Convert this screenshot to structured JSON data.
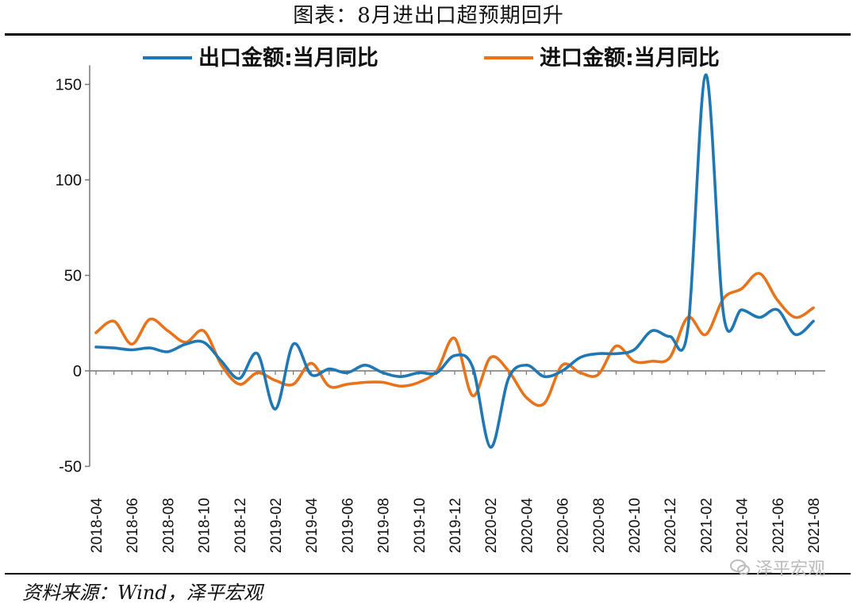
{
  "title": "图表：8月进出口超预期回升",
  "source": "资料来源：Wind，泽平宏观",
  "watermark": "泽平宏观",
  "colors": {
    "export": "#1f77b4",
    "import": "#e8731a",
    "axis": "#777777"
  },
  "chart_data": {
    "type": "line",
    "title": "图表：8月进出口超预期回升",
    "xlabel": "",
    "ylabel": "",
    "ylim": [
      -50,
      160
    ],
    "yticks": [
      -50,
      0,
      50,
      100,
      150
    ],
    "legend_position": "top",
    "grid": false,
    "x": [
      "2018-04",
      "2018-05",
      "2018-06",
      "2018-07",
      "2018-08",
      "2018-09",
      "2018-10",
      "2018-11",
      "2018-12",
      "2019-01",
      "2019-02",
      "2019-03",
      "2019-04",
      "2019-05",
      "2019-06",
      "2019-07",
      "2019-08",
      "2019-09",
      "2019-10",
      "2019-11",
      "2019-12",
      "2020-01",
      "2020-02",
      "2020-03",
      "2020-04",
      "2020-05",
      "2020-06",
      "2020-07",
      "2020-08",
      "2020-09",
      "2020-10",
      "2020-11",
      "2020-12",
      "2021-01",
      "2021-02",
      "2021-03",
      "2021-04",
      "2021-05",
      "2021-06",
      "2021-07",
      "2021-08"
    ],
    "xtick_labels": [
      "2018-04",
      "2018-06",
      "2018-08",
      "2018-10",
      "2018-12",
      "2019-02",
      "2019-04",
      "2019-06",
      "2019-08",
      "2019-10",
      "2019-12",
      "2020-02",
      "2020-04",
      "2020-06",
      "2020-08",
      "2020-10",
      "2020-12",
      "2021-02",
      "2021-04",
      "2021-06",
      "2021-08"
    ],
    "series": [
      {
        "name": "出口金额:当月同比",
        "color": "#1f77b4",
        "values": [
          12.5,
          12,
          11,
          12,
          10,
          14,
          15,
          5,
          -4,
          9,
          -20,
          14,
          -2,
          1,
          -1,
          3,
          -1,
          -3,
          -1,
          -1,
          8,
          2,
          -40,
          -4,
          3,
          -3,
          0,
          7,
          9,
          9,
          11,
          21,
          18,
          22,
          155,
          29,
          32,
          28,
          32,
          19,
          26
        ]
      },
      {
        "name": "进口金额:当月同比",
        "color": "#e8731a",
        "values": [
          20,
          26,
          14,
          27,
          21,
          15,
          21,
          3,
          -7,
          -1,
          -5,
          -7,
          4,
          -8,
          -7,
          -6,
          -6,
          -8,
          -6,
          0,
          17,
          -13,
          7,
          0,
          -14,
          -17,
          3,
          -1,
          -2,
          13,
          5,
          5,
          7,
          28,
          19,
          38,
          43,
          51,
          37,
          28,
          33
        ]
      }
    ]
  }
}
